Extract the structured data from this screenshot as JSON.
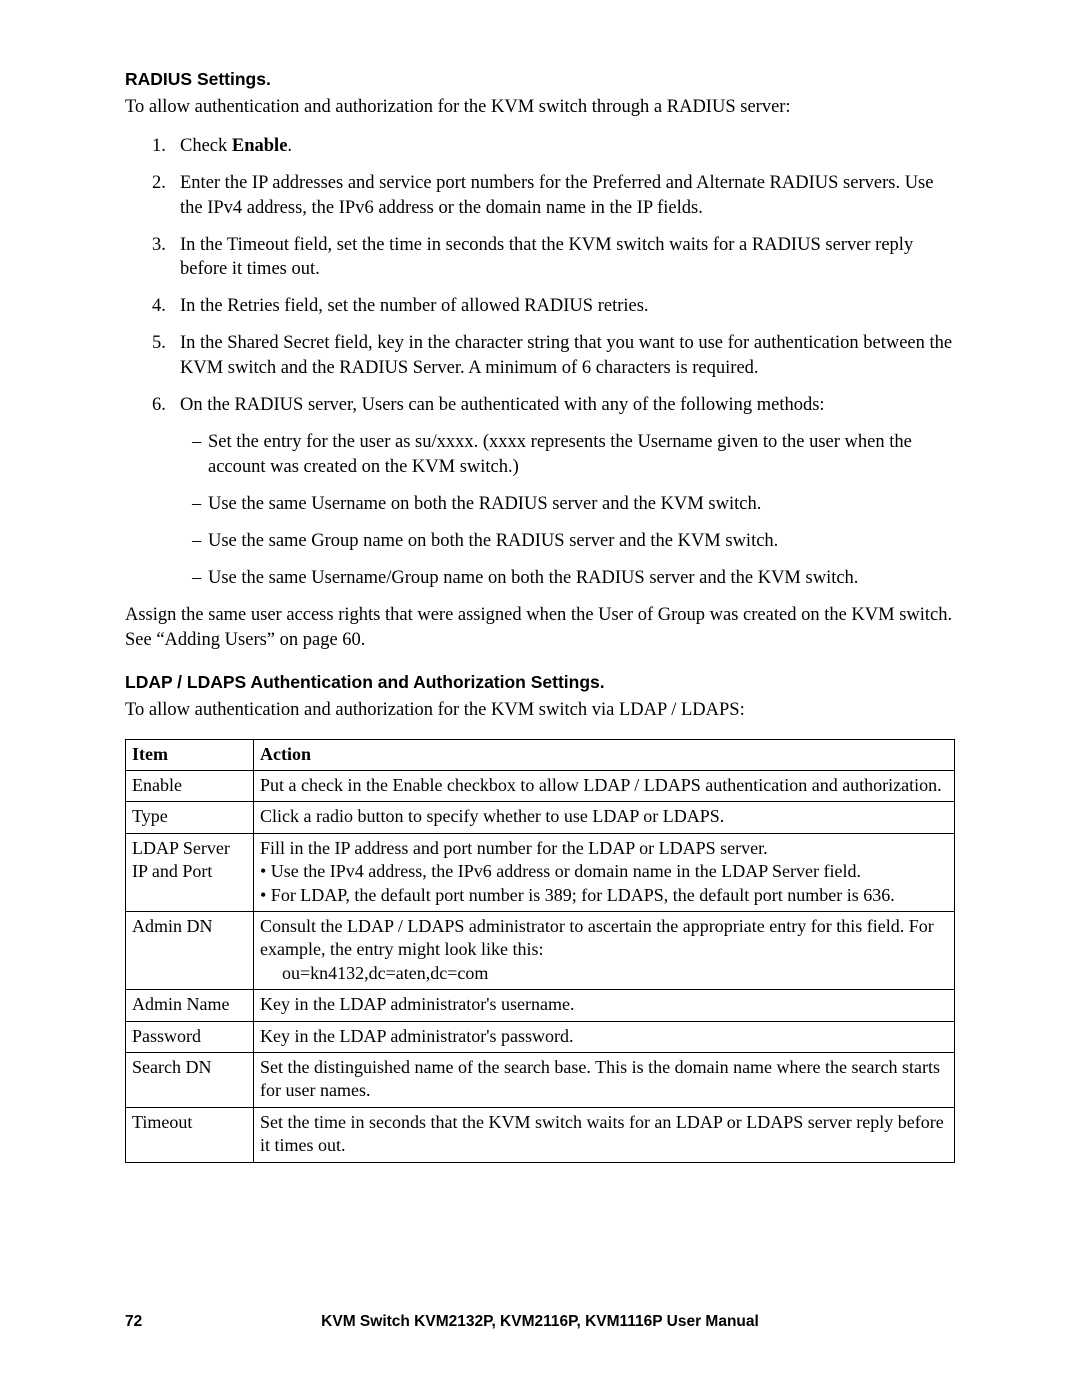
{
  "section1": {
    "heading": "RADIUS Settings.",
    "intro": "To allow authentication and authorization for the KVM switch through a RADIUS server:",
    "items": [
      {
        "num": "1.",
        "prefix": "Check ",
        "bold": "Enable",
        "suffix": "."
      },
      {
        "num": "2.",
        "text": "Enter the IP addresses and service port numbers for the Preferred and Alternate RADIUS servers. Use the IPv4 address, the IPv6 address or the domain name in the IP fields."
      },
      {
        "num": "3.",
        "text": "In the Timeout field, set the time in seconds that the KVM switch waits for a RADIUS server reply before it times out."
      },
      {
        "num": "4.",
        "text": "In the Retries field, set the number of allowed RADIUS retries."
      },
      {
        "num": "5.",
        "text": "In the Shared Secret field, key in the character string that you want to use for authentication between the KVM switch and the RADIUS Server. A minimum of 6 characters is required."
      },
      {
        "num": "6.",
        "text": "On the RADIUS server, Users can be authenticated with any of the following methods:",
        "subs": [
          "Set the entry for the user as su/xxxx. (xxxx represents the Username given to the user when the account was created on the KVM switch.)",
          "Use the same Username on both the RADIUS server and the KVM switch.",
          "Use the same Group name on both the RADIUS server and the KVM switch.",
          "Use the same Username/Group name on both the RADIUS server and the KVM switch."
        ]
      }
    ],
    "after": "Assign the same user access rights that were assigned when the User of Group was created on the KVM switch. See “Adding Users” on page 60."
  },
  "section2": {
    "heading": "LDAP / LDAPS Authentication and Authorization Settings.",
    "intro": "To allow authentication and authorization for the KVM switch via LDAP / LDAPS:",
    "table": {
      "header": {
        "c1": "Item",
        "c2": "Action"
      },
      "rows": [
        {
          "c1": "Enable",
          "c2": "Put a check in the Enable checkbox to allow LDAP / LDAPS authentication and authorization."
        },
        {
          "c1": "Type",
          "c2": "Click a radio button to specify whether to use LDAP or LDAPS."
        },
        {
          "c1": "LDAP Server IP and Port",
          "c2_l1": "Fill in the IP address and port number for the LDAP or LDAPS server.",
          "c2_l2": "• Use the IPv4 address, the IPv6 address or domain name in the LDAP Server field.",
          "c2_l3": "• For LDAP, the default port number is 389; for LDAPS, the default port number is 636."
        },
        {
          "c1": "Admin DN",
          "c2_l1": "Consult the LDAP / LDAPS administrator to ascertain the appropriate entry for this field. For example, the entry might look like this:",
          "c2_l2": "ou=kn4132,dc=aten,dc=com"
        },
        {
          "c1": "Admin Name",
          "c2": "Key in the LDAP administrator's username."
        },
        {
          "c1": "Password",
          "c2": "Key in the LDAP administrator's password."
        },
        {
          "c1": "Search DN",
          "c2": "Set the distinguished name of the search base. This is the domain name where the search starts for user names."
        },
        {
          "c1": "Timeout",
          "c2": "Set the time in seconds that the KVM switch waits for an LDAP or LDAPS server reply before it times out."
        }
      ]
    }
  },
  "footer": {
    "page": "72",
    "title": "KVM Switch KVM2132P, KVM2116P, KVM1116P User Manual"
  }
}
